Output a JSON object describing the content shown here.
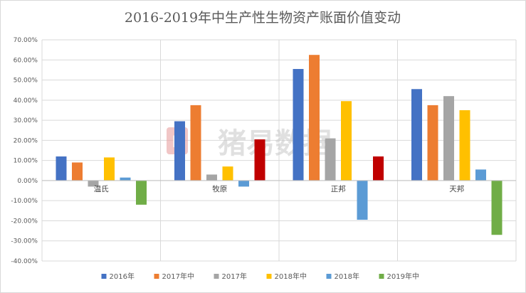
{
  "chart_data": {
    "type": "bar",
    "title": "2016-2019年中生产性生物资产账面价值变动",
    "categories": [
      "温氏",
      "牧原",
      "正邦",
      "天邦"
    ],
    "series": [
      {
        "name": "2016年",
        "color": "#4472C4",
        "values": [
          12.0,
          29.5,
          55.5,
          45.5
        ]
      },
      {
        "name": "2017年中",
        "color": "#ED7D31",
        "values": [
          9.0,
          37.5,
          62.5,
          37.5
        ]
      },
      {
        "name": "2017年",
        "color": "#A5A5A5",
        "values": [
          -3.0,
          3.0,
          21.0,
          42.0
        ]
      },
      {
        "name": "2018年中",
        "color": "#FFC000",
        "values": [
          11.5,
          7.0,
          39.5,
          35.0
        ]
      },
      {
        "name": "2018年",
        "color": "#5B9BD5",
        "values": [
          1.5,
          -3.0,
          -19.5,
          5.5
        ]
      },
      {
        "name": "2019年中",
        "color": "#70AD47",
        "values": [
          -12.0,
          null,
          null,
          -27.0
        ]
      }
    ],
    "ylim": [
      -40,
      70
    ],
    "ytick_step": 10,
    "ytick_labels": [
      "-40.00%",
      "-30.00%",
      "-20.00%",
      "-10.00%",
      "0.00%",
      "10.00%",
      "20.00%",
      "30.00%",
      "40.00%",
      "50.00%",
      "60.00%",
      "70.00%"
    ],
    "highlight_color": "#C00000",
    "highlight_bars": [
      {
        "category_index": 1,
        "value": 20.5
      },
      {
        "category_index": 2,
        "value": 12.0
      }
    ],
    "grid": true,
    "legend_position": "bottom"
  },
  "watermark": {
    "text": "猪易数据",
    "logo_letter": "E"
  }
}
